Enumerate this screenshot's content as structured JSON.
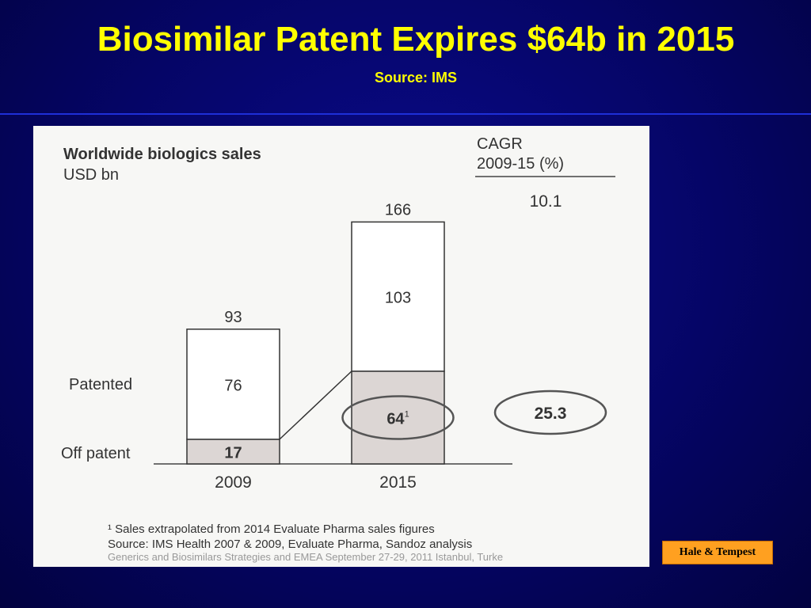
{
  "slide": {
    "title": "Biosimilar Patent Expires $64b in 2015",
    "subtitle": "Source: IMS",
    "credit": "Hale & Tempest",
    "background_color": "#050566",
    "title_color": "#ffff00",
    "credit_color": "#ffa020"
  },
  "chart_data": {
    "type": "bar",
    "stacked": true,
    "title": "Worldwide biologics sales",
    "unit_label": "USD bn",
    "categories": [
      "2009",
      "2015"
    ],
    "totals": [
      "93",
      "166"
    ],
    "series": [
      {
        "name": "Off patent",
        "values": [
          17,
          64
        ],
        "labels": [
          "17",
          "64"
        ],
        "color": "#dcd6d4"
      },
      {
        "name": "Patented",
        "values": [
          76,
          103
        ],
        "labels": [
          "76",
          "103"
        ],
        "color": "#ffffff"
      }
    ],
    "footnote_marker": "1",
    "cagr": {
      "header_line1": "CAGR",
      "header_line2": "2009-15 (%)",
      "total": "10.1",
      "off_patent": "25.3"
    },
    "footnotes": [
      "¹ Sales extrapolated from 2014 Evaluate Pharma sales figures",
      "Source: IMS Health 2007 & 2009, Evaluate Pharma, Sandoz analysis",
      "Generics and Biosimilars Strategies and EMEA  September 27-29, 2011  Istanbul, Turke"
    ]
  }
}
